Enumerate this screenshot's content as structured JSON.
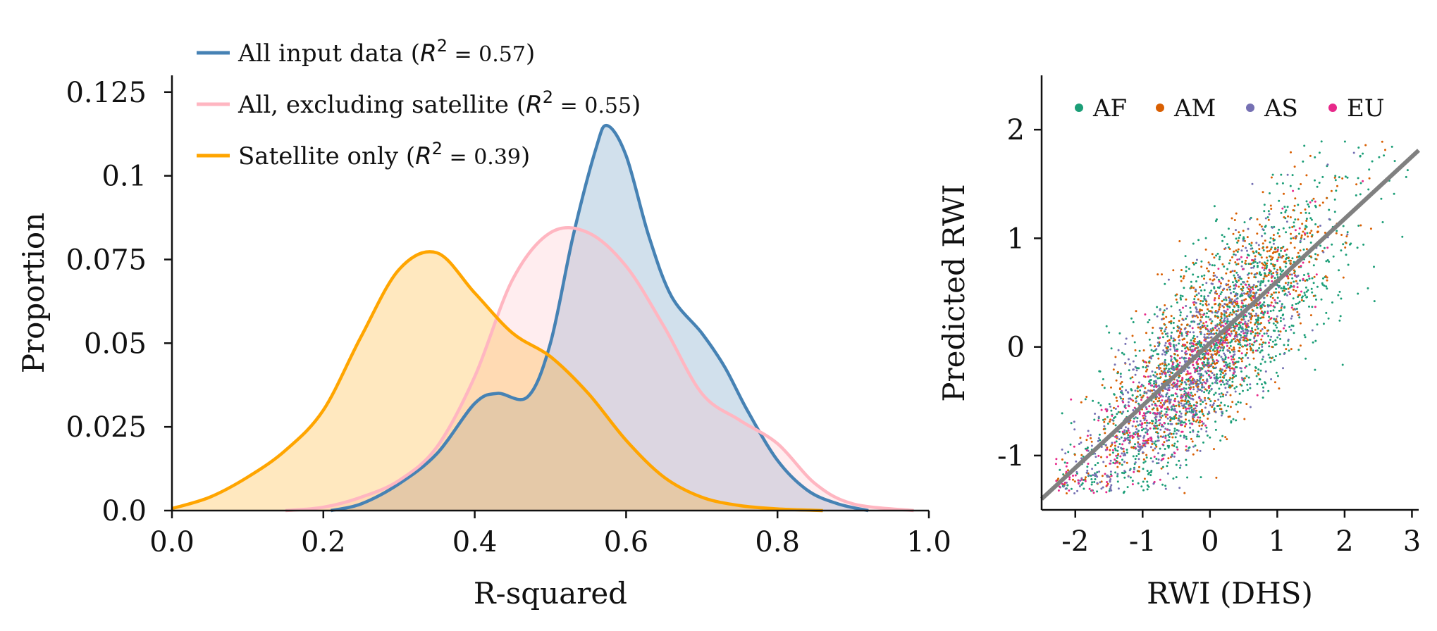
{
  "chart_data": [
    {
      "type": "area",
      "xlabel": "R-squared",
      "ylabel": "Proportion",
      "xlim": [
        0,
        1.0
      ],
      "ylim": [
        0,
        0.13
      ],
      "xticks": [
        "0.0",
        "0.2",
        "0.4",
        "0.6",
        "0.8",
        "1.0"
      ],
      "yticks": [
        "0.0",
        "0.025",
        "0.05",
        "0.075",
        "0.1",
        "0.125"
      ],
      "grid": false,
      "legend_position": "top-left",
      "series": [
        {
          "name": "All input data",
          "r2_label": "= 0.57",
          "color": "#4682b4",
          "x": [
            0.21,
            0.25,
            0.3,
            0.35,
            0.4,
            0.43,
            0.47,
            0.5,
            0.53,
            0.56,
            0.575,
            0.6,
            0.63,
            0.66,
            0.7,
            0.73,
            0.76,
            0.8,
            0.84,
            0.88,
            0.92
          ],
          "y": [
            0.0,
            0.002,
            0.008,
            0.017,
            0.032,
            0.035,
            0.034,
            0.05,
            0.082,
            0.108,
            0.115,
            0.106,
            0.082,
            0.064,
            0.053,
            0.043,
            0.03,
            0.015,
            0.006,
            0.002,
            0.0
          ]
        },
        {
          "name": "All, excluding satellite",
          "r2_label": "= 0.55",
          "color": "#ffb6c1",
          "x": [
            0.15,
            0.2,
            0.25,
            0.3,
            0.35,
            0.4,
            0.45,
            0.5,
            0.55,
            0.6,
            0.65,
            0.7,
            0.75,
            0.8,
            0.85,
            0.9,
            0.98
          ],
          "y": [
            0.0,
            0.001,
            0.004,
            0.009,
            0.019,
            0.04,
            0.069,
            0.083,
            0.083,
            0.073,
            0.055,
            0.035,
            0.027,
            0.02,
            0.008,
            0.002,
            0.0
          ]
        },
        {
          "name": "Satellite only",
          "r2_label": "= 0.39",
          "color": "#ffa500",
          "x": [
            0.0,
            0.05,
            0.1,
            0.15,
            0.2,
            0.25,
            0.3,
            0.35,
            0.4,
            0.45,
            0.5,
            0.55,
            0.6,
            0.65,
            0.7,
            0.75,
            0.8,
            0.86
          ],
          "y": [
            0.0006,
            0.004,
            0.01,
            0.018,
            0.03,
            0.052,
            0.072,
            0.077,
            0.065,
            0.053,
            0.046,
            0.035,
            0.021,
            0.01,
            0.004,
            0.0015,
            0.0005,
            0.0
          ]
        }
      ]
    },
    {
      "type": "scatter",
      "xlabel": "RWI (DHS)",
      "ylabel": "Predicted RWI",
      "xlim": [
        -2.5,
        3.1
      ],
      "ylim": [
        -1.5,
        2.5
      ],
      "xticks": [
        "-2",
        "-1",
        "0",
        "1",
        "2",
        "3"
      ],
      "yticks": [
        "-1",
        "0",
        "1",
        "2"
      ],
      "grid": false,
      "legend_position": "top",
      "series": [
        {
          "name": "AF",
          "color": "#1b9e77"
        },
        {
          "name": "AM",
          "color": "#d95f02"
        },
        {
          "name": "AS",
          "color": "#7570b3"
        },
        {
          "name": "EU",
          "color": "#e7298a"
        }
      ],
      "fit_line": {
        "color": "#808080",
        "x": [
          -2.5,
          3.1
        ],
        "y": [
          -1.4,
          1.81
        ]
      }
    }
  ]
}
